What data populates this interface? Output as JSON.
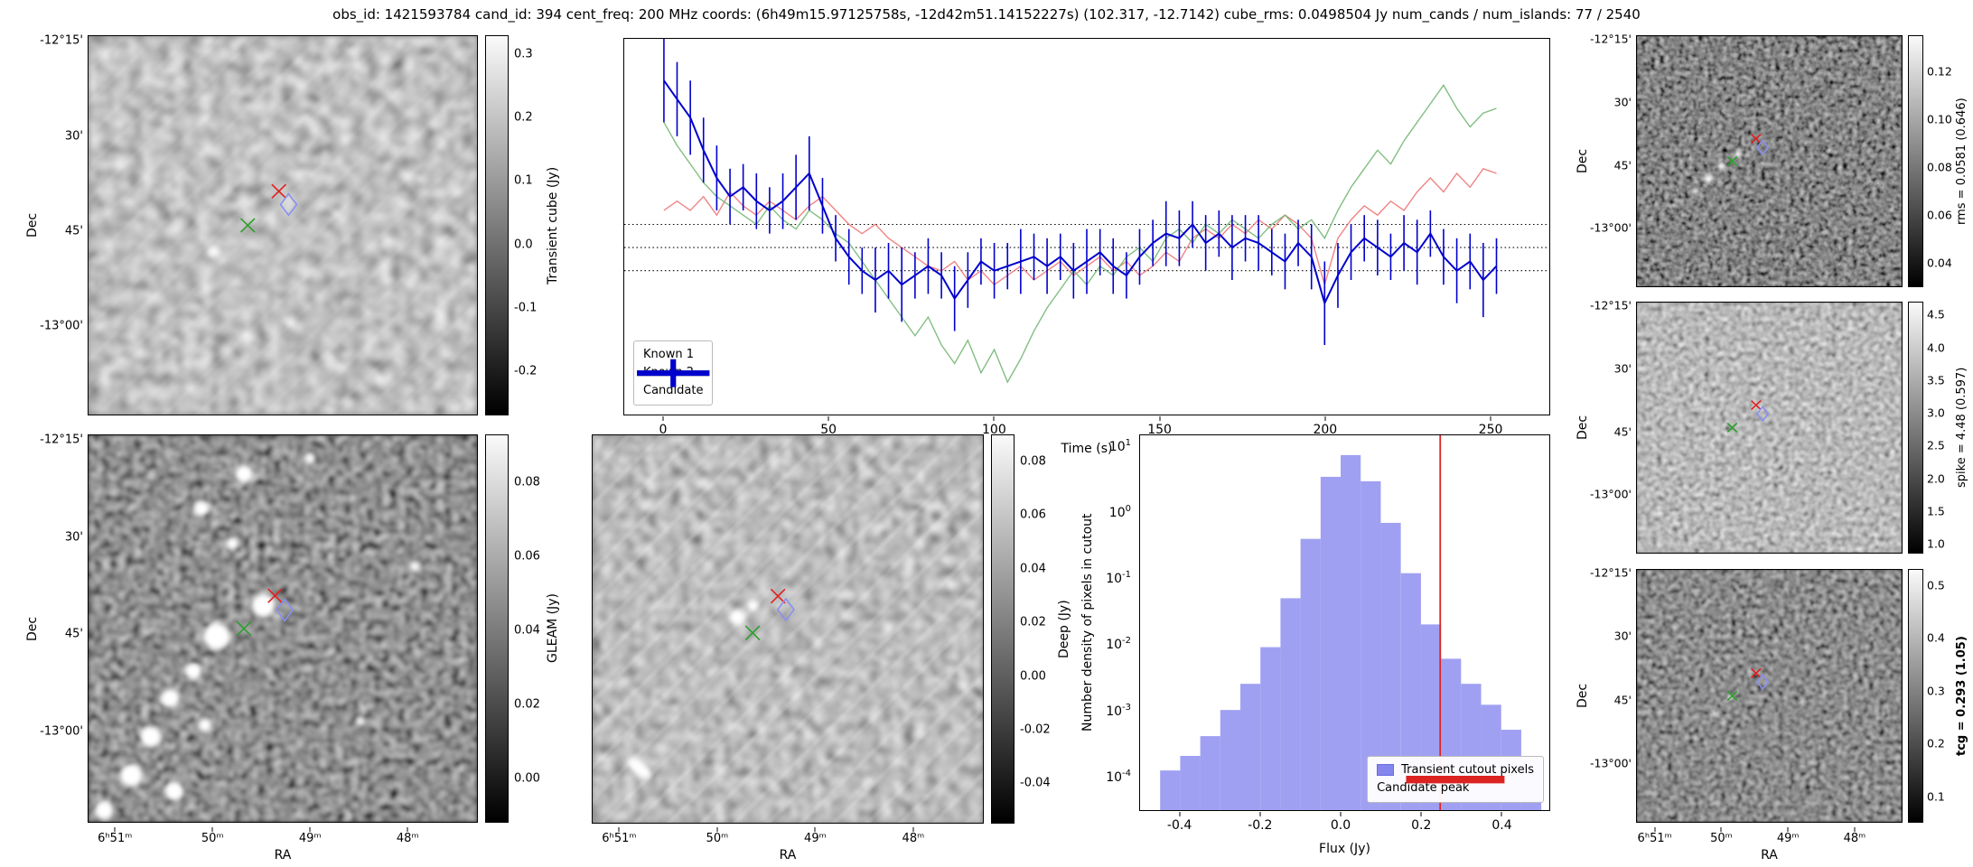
{
  "title": "obs_id: 1421593784 cand_id: 394 cent_freq: 200 MHz coords: (6h49m15.97125758s, -12d42m51.14152227s) (102.317, -12.7142) cube_rms: 0.0498504 Jy num_cands / num_islands: 77 / 2540",
  "colors": {
    "known1": "#ee7777",
    "known2": "#74b774",
    "candidate": "#0000cd",
    "hist_fill": "#8585ee",
    "hist_edge": "#6a6ae0",
    "peak_line": "#dd2222",
    "marker_red": "#e02020",
    "marker_green": "#2ca02c",
    "marker_blue": "#8890f0"
  },
  "sky_axes": {
    "dec_label": "Dec",
    "ra_label": "RA",
    "dec_ticks": [
      "-12°15'",
      "30'",
      "45'",
      "-13°00'"
    ],
    "ra_ticks": [
      "6ʰ51ᵐ",
      "50ᵐ",
      "49ᵐ",
      "48ᵐ"
    ]
  },
  "colorbars": {
    "transient": {
      "label": "Transient cube (Jy)",
      "ticks": [
        "0.3",
        "0.2",
        "0.1",
        "0.0",
        "-0.1",
        "-0.2"
      ],
      "values": [
        0.3,
        0.2,
        0.1,
        0.0,
        -0.1,
        -0.2
      ],
      "vmin": -0.27,
      "vmax": 0.33
    },
    "gleam": {
      "label": "GLEAM (Jy)",
      "ticks": [
        "0.08",
        "0.06",
        "0.04",
        "0.02",
        "0.00"
      ],
      "values": [
        0.08,
        0.06,
        0.04,
        0.02,
        0.0
      ],
      "vmin": -0.012,
      "vmax": 0.093
    },
    "deep": {
      "label": "Deep (Jy)",
      "ticks": [
        "0.08",
        "0.06",
        "0.04",
        "0.02",
        "0.00",
        "-0.02",
        "-0.04"
      ],
      "values": [
        0.08,
        0.06,
        0.04,
        0.02,
        0.0,
        -0.02,
        -0.04
      ],
      "vmin": -0.055,
      "vmax": 0.09
    },
    "rms": {
      "label": "rms = 0.0581 (0.646)",
      "ticks": [
        "0.12",
        "0.10",
        "0.08",
        "0.06",
        "0.04"
      ],
      "values": [
        0.12,
        0.1,
        0.08,
        0.06,
        0.04
      ],
      "vmin": 0.03,
      "vmax": 0.135
    },
    "spike": {
      "label": "spike = 4.48 (0.597)",
      "ticks": [
        "4.5",
        "4.0",
        "3.5",
        "3.0",
        "2.5",
        "2.0",
        "1.5",
        "1.0"
      ],
      "values": [
        4.5,
        4.0,
        3.5,
        3.0,
        2.5,
        2.0,
        1.5,
        1.0
      ],
      "vmin": 0.85,
      "vmax": 4.7
    },
    "tcg": {
      "label": "tcg = 0.293 (1.05)",
      "ticks": [
        "0.5",
        "0.4",
        "0.3",
        "0.2",
        "0.1"
      ],
      "values": [
        0.5,
        0.4,
        0.3,
        0.2,
        0.1
      ],
      "vmin": 0.05,
      "vmax": 0.53
    }
  },
  "chart_data": [
    {
      "type": "line",
      "title": "",
      "xlabel": "Time (s)",
      "ylabel": "",
      "xlim": [
        -12,
        268
      ],
      "ylim": [
        -0.36,
        0.45
      ],
      "xticks": [
        0,
        50,
        100,
        150,
        200,
        250
      ],
      "dotted_lines": [
        0.0498,
        0.0,
        -0.0498
      ],
      "legend_position": "lower-left",
      "x": [
        0,
        4,
        8,
        12,
        16,
        20,
        24,
        28,
        32,
        36,
        40,
        44,
        48,
        52,
        56,
        60,
        64,
        68,
        72,
        76,
        80,
        84,
        88,
        92,
        96,
        100,
        104,
        108,
        112,
        116,
        120,
        124,
        128,
        132,
        136,
        140,
        144,
        148,
        152,
        156,
        160,
        164,
        168,
        172,
        176,
        180,
        184,
        188,
        192,
        196,
        200,
        204,
        208,
        212,
        216,
        220,
        224,
        228,
        232,
        236,
        240,
        244,
        248,
        252
      ],
      "series": [
        {
          "name": "Known 1",
          "color_key": "known1",
          "values": [
            0.08,
            0.1,
            0.08,
            0.11,
            0.07,
            0.12,
            0.09,
            0.07,
            0.1,
            0.08,
            0.06,
            0.09,
            0.11,
            0.08,
            0.05,
            0.03,
            0.05,
            0.02,
            0.0,
            -0.02,
            -0.04,
            -0.05,
            -0.03,
            -0.07,
            -0.05,
            -0.08,
            -0.06,
            -0.04,
            -0.07,
            -0.05,
            -0.03,
            -0.06,
            -0.04,
            -0.02,
            -0.05,
            -0.03,
            -0.06,
            -0.04,
            -0.01,
            -0.03,
            0.02,
            0.04,
            0.02,
            0.05,
            0.03,
            0.06,
            0.04,
            0.07,
            0.05,
            0.02,
            -0.08,
            0.02,
            0.06,
            0.09,
            0.07,
            0.1,
            0.08,
            0.12,
            0.15,
            0.12,
            0.16,
            0.13,
            0.17,
            0.16
          ]
        },
        {
          "name": "Known 2",
          "color_key": "known2",
          "values": [
            0.27,
            0.22,
            0.18,
            0.14,
            0.11,
            0.09,
            0.07,
            0.05,
            0.09,
            0.06,
            0.04,
            0.08,
            0.06,
            0.03,
            0.01,
            -0.03,
            -0.07,
            -0.11,
            -0.15,
            -0.19,
            -0.15,
            -0.21,
            -0.25,
            -0.2,
            -0.27,
            -0.22,
            -0.29,
            -0.24,
            -0.18,
            -0.13,
            -0.09,
            -0.05,
            -0.08,
            -0.04,
            -0.06,
            -0.02,
            0.0,
            -0.03,
            0.02,
            0.04,
            0.01,
            0.05,
            0.03,
            0.06,
            0.04,
            0.02,
            0.05,
            0.07,
            0.04,
            0.06,
            0.02,
            0.08,
            0.13,
            0.17,
            0.21,
            0.18,
            0.23,
            0.27,
            0.31,
            0.35,
            0.3,
            0.26,
            0.29,
            0.3
          ]
        },
        {
          "name": "Candidate",
          "color_key": "candidate",
          "values": [
            0.36,
            0.32,
            0.28,
            0.21,
            0.15,
            0.11,
            0.13,
            0.1,
            0.08,
            0.1,
            0.13,
            0.16,
            0.09,
            0.02,
            -0.02,
            -0.05,
            -0.07,
            -0.05,
            -0.08,
            -0.06,
            -0.04,
            -0.06,
            -0.11,
            -0.07,
            -0.03,
            -0.05,
            -0.04,
            -0.03,
            -0.02,
            -0.04,
            -0.02,
            -0.05,
            -0.03,
            -0.01,
            -0.04,
            -0.06,
            -0.02,
            0.01,
            0.03,
            0.02,
            0.05,
            0.01,
            0.03,
            0.0,
            0.02,
            0.01,
            -0.01,
            -0.03,
            0.01,
            -0.02,
            -0.12,
            -0.06,
            -0.01,
            0.02,
            0.0,
            -0.02,
            0.01,
            -0.01,
            0.03,
            -0.02,
            -0.05,
            -0.03,
            -0.07,
            -0.04
          ],
          "errors": [
            0.09,
            0.08,
            0.08,
            0.07,
            0.07,
            0.06,
            0.05,
            0.06,
            0.05,
            0.06,
            0.07,
            0.08,
            0.06,
            0.05,
            0.06,
            0.05,
            0.07,
            0.06,
            0.08,
            0.05,
            0.06,
            0.05,
            0.07,
            0.06,
            0.05,
            0.06,
            0.05,
            0.07,
            0.05,
            0.06,
            0.05,
            0.06,
            0.07,
            0.05,
            0.06,
            0.05,
            0.06,
            0.05,
            0.07,
            0.06,
            0.05,
            0.06,
            0.05,
            0.07,
            0.05,
            0.06,
            0.05,
            0.06,
            0.05,
            0.07,
            0.09,
            0.07,
            0.06,
            0.05,
            0.06,
            0.05,
            0.06,
            0.07,
            0.05,
            0.06,
            0.07,
            0.06,
            0.08,
            0.06
          ]
        }
      ]
    },
    {
      "type": "bar",
      "title": "",
      "xlabel": "Flux (Jy)",
      "ylabel": "Number density of pixels in cutout",
      "xlim": [
        -0.5,
        0.52
      ],
      "ylog": true,
      "ylim": [
        3e-05,
        15
      ],
      "xticks": [
        -0.4,
        -0.2,
        0.0,
        0.2,
        0.4
      ],
      "ytick_exponents": [
        1,
        0,
        -1,
        -2,
        -3,
        -4
      ],
      "bin_width": 0.05,
      "bin_centers": [
        -0.425,
        -0.375,
        -0.325,
        -0.275,
        -0.225,
        -0.175,
        -0.125,
        -0.075,
        -0.025,
        0.025,
        0.075,
        0.125,
        0.175,
        0.225,
        0.275,
        0.325,
        0.375,
        0.425,
        0.475
      ],
      "values": [
        0.00012,
        0.0002,
        0.0004,
        0.001,
        0.0025,
        0.009,
        0.05,
        0.4,
        3.5,
        7.5,
        3.0,
        0.7,
        0.12,
        0.02,
        0.006,
        0.0025,
        0.0012,
        0.0005,
        0.0002
      ],
      "candidate_peak": 0.248,
      "legend": [
        "Transient cutout pixels",
        "Candidate peak"
      ]
    }
  ]
}
